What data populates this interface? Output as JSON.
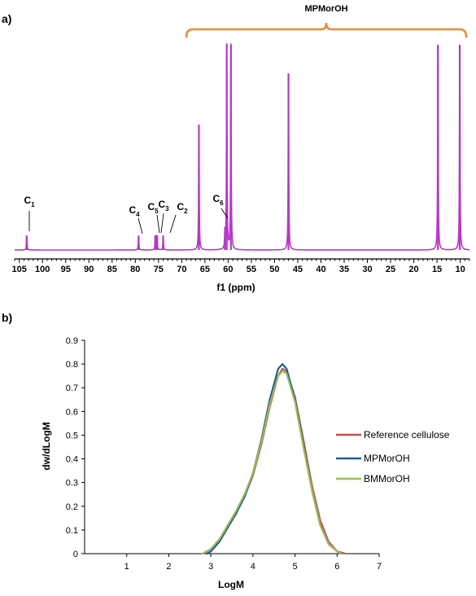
{
  "chart_data": [
    {
      "panel": "a)",
      "type": "line",
      "xlabel": "f1 (ppm)",
      "xlim": [
        106,
        8
      ],
      "x_reversed": true,
      "x_ticks": [
        105,
        100,
        95,
        90,
        85,
        80,
        75,
        70,
        65,
        60,
        55,
        50,
        45,
        40,
        35,
        30,
        25,
        20,
        15,
        10
      ],
      "ylabel": "",
      "series": [
        {
          "color": "#b638c6",
          "peaks": [
            {
              "ppm": 103.4,
              "height": 0.07
            },
            {
              "ppm": 79.3,
              "height": 0.07
            },
            {
              "ppm": 75.7,
              "height": 0.07
            },
            {
              "ppm": 75.3,
              "height": 0.07
            },
            {
              "ppm": 74.0,
              "height": 0.07
            },
            {
              "ppm": 66.3,
              "height": 0.61
            },
            {
              "ppm": 60.7,
              "height": 0.08
            },
            {
              "ppm": 60.3,
              "height": 1.0
            },
            {
              "ppm": 59.4,
              "height": 1.0
            },
            {
              "ppm": 47.0,
              "height": 0.86
            },
            {
              "ppm": 14.8,
              "height": 1.0
            },
            {
              "ppm": 10.1,
              "height": 1.0
            }
          ]
        }
      ],
      "annotations": [
        {
          "label": "C",
          "sub": "1",
          "ppm": 103.4
        },
        {
          "label": "C",
          "sub": "4",
          "ppm": 79.3
        },
        {
          "label": "C",
          "sub": "5",
          "ppm": 75.7
        },
        {
          "label": "C",
          "sub": "3",
          "ppm": 75.3
        },
        {
          "label": "C",
          "sub": "2",
          "ppm": 74.0
        },
        {
          "label": "C",
          "sub": "6",
          "ppm": 60.7
        }
      ],
      "bracket": {
        "label": "MPMorOH",
        "from_ppm": 69,
        "to_ppm": 8.7,
        "color": "#f08a2e"
      }
    },
    {
      "panel": "b)",
      "type": "line",
      "xlabel": "LogM",
      "ylabel": "dw/dLogM",
      "xlim": [
        0,
        7
      ],
      "ylim": [
        0,
        0.9
      ],
      "x_ticks": [
        1,
        2,
        3,
        4,
        5,
        6,
        7
      ],
      "y_ticks": [
        0,
        0.1,
        0.2,
        0.3,
        0.4,
        0.5,
        0.6,
        0.7,
        0.8,
        0.9
      ],
      "legend_position": "right",
      "series": [
        {
          "name": "Reference cellulose",
          "color": "#c0504d",
          "x": [
            2.9,
            3.0,
            3.2,
            3.4,
            3.6,
            3.8,
            4.0,
            4.2,
            4.4,
            4.6,
            4.7,
            4.8,
            5.0,
            5.2,
            5.4,
            5.6,
            5.8,
            6.0,
            6.2
          ],
          "y": [
            0.0,
            0.01,
            0.05,
            0.11,
            0.17,
            0.24,
            0.33,
            0.46,
            0.62,
            0.75,
            0.78,
            0.77,
            0.66,
            0.48,
            0.29,
            0.14,
            0.05,
            0.01,
            0.0
          ]
        },
        {
          "name": "MPMorOH",
          "color": "#1f5f8b",
          "x": [
            2.9,
            3.0,
            3.2,
            3.4,
            3.6,
            3.8,
            4.0,
            4.2,
            4.4,
            4.6,
            4.7,
            4.8,
            5.0,
            5.2,
            5.4,
            5.6,
            5.8,
            6.0,
            6.1
          ],
          "y": [
            0.0,
            0.01,
            0.05,
            0.11,
            0.17,
            0.24,
            0.34,
            0.48,
            0.65,
            0.78,
            0.8,
            0.78,
            0.65,
            0.46,
            0.27,
            0.12,
            0.04,
            0.01,
            0.0
          ]
        },
        {
          "name": "BMMorOH",
          "color": "#9bbb59",
          "x": [
            2.8,
            3.0,
            3.2,
            3.4,
            3.6,
            3.8,
            4.0,
            4.2,
            4.4,
            4.6,
            4.7,
            4.8,
            5.0,
            5.2,
            5.4,
            5.6,
            5.8,
            6.0,
            6.1
          ],
          "y": [
            0.0,
            0.02,
            0.06,
            0.12,
            0.18,
            0.25,
            0.34,
            0.47,
            0.63,
            0.75,
            0.77,
            0.76,
            0.64,
            0.45,
            0.27,
            0.12,
            0.04,
            0.01,
            0.0
          ]
        }
      ]
    }
  ]
}
